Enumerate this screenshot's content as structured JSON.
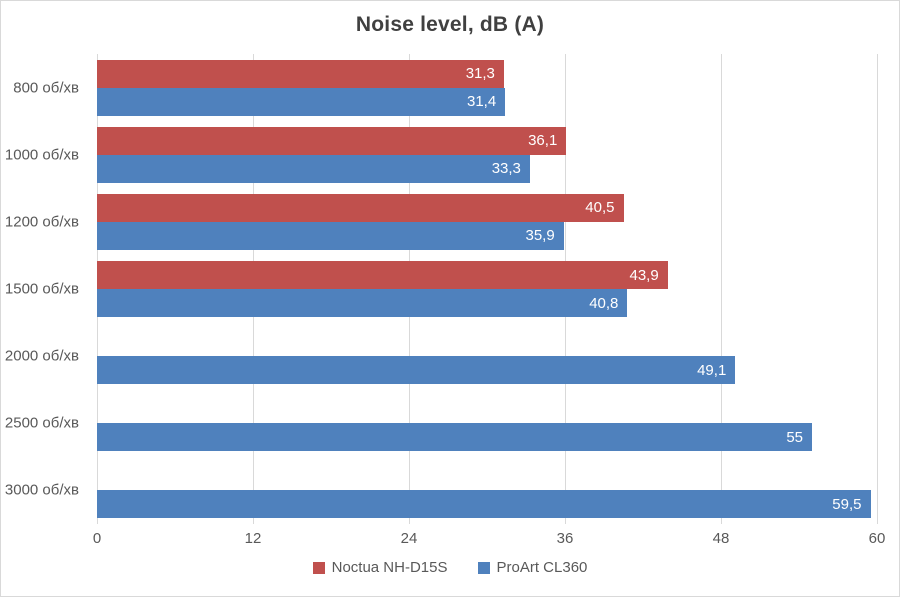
{
  "chart_data": {
    "type": "bar",
    "orientation": "horizontal",
    "title": "Noise level, dB (A)",
    "categories": [
      "800 об/хв",
      "1000 об/хв",
      "1200 об/хв",
      "1500 об/хв",
      "2000 об/хв",
      "2500 об/хв",
      "3000 об/хв"
    ],
    "series": [
      {
        "name": "Noctua NH-D15S",
        "color": "#c0504d",
        "values": [
          31.3,
          36.1,
          40.5,
          43.9,
          null,
          null,
          null
        ],
        "labels": [
          "31,3",
          "36,1",
          "40,5",
          "43,9",
          "",
          "",
          ""
        ]
      },
      {
        "name": "ProArt CL360",
        "color": "#4f81bd",
        "values": [
          31.4,
          33.3,
          35.9,
          40.8,
          49.1,
          55,
          59.5
        ],
        "labels": [
          "31,4",
          "33,3",
          "35,9",
          "40,8",
          "49,1",
          "55",
          "59,5"
        ]
      }
    ],
    "x_ticks": [
      0,
      12,
      24,
      36,
      48,
      60
    ],
    "xlim": [
      0,
      60
    ],
    "grid": true,
    "legend_position": "bottom",
    "colors": {
      "gridline": "#d9d9d9",
      "axis_text": "#595959",
      "title_text": "#404040",
      "value_label_text": "#ffffff",
      "background": "#ffffff"
    }
  }
}
